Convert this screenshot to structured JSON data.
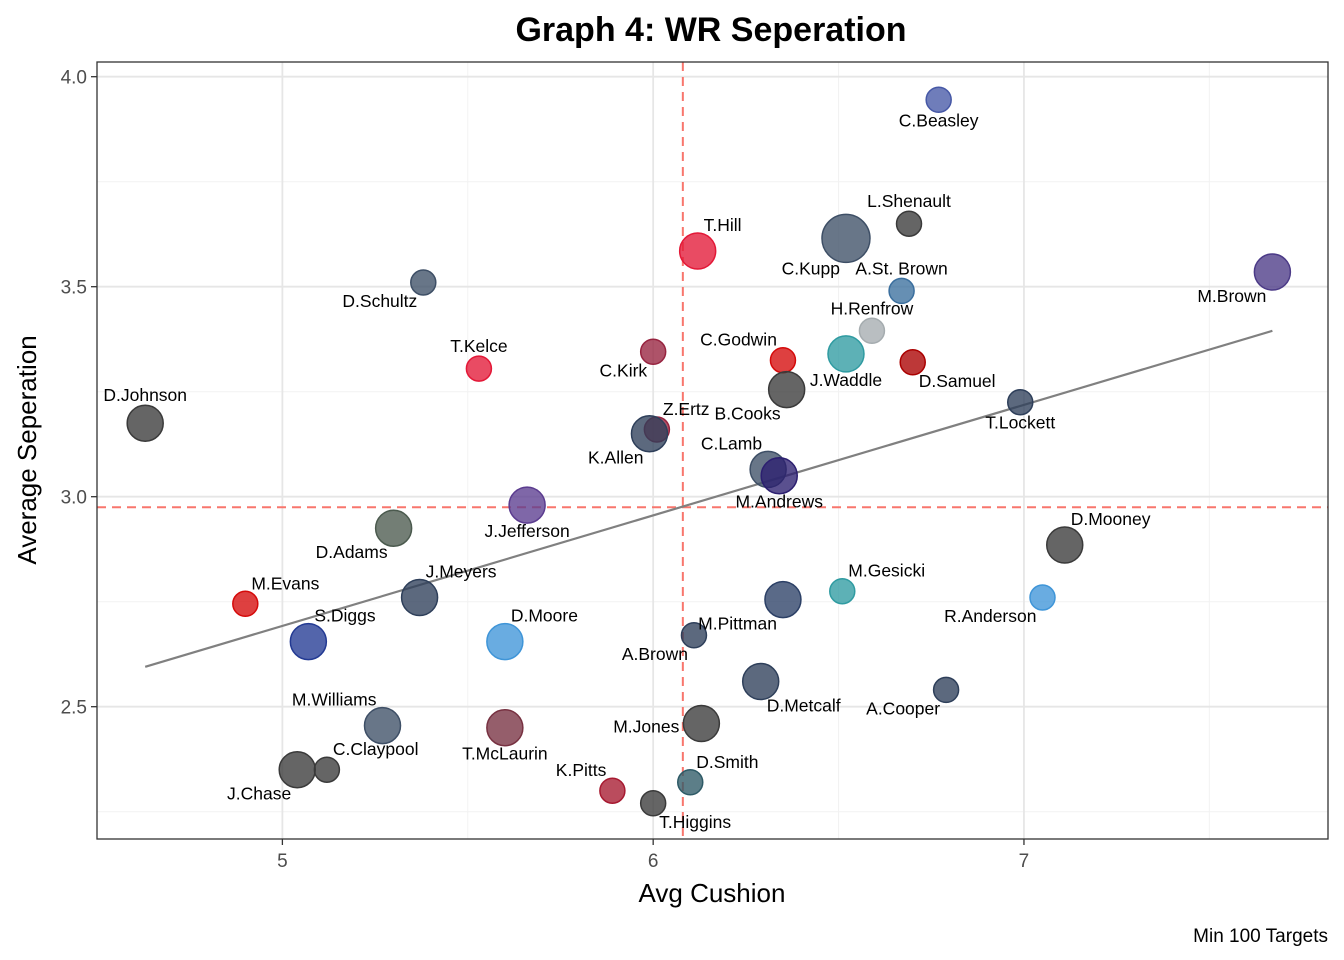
{
  "chart_data": {
    "type": "scatter",
    "title": "Graph 4: WR Seperation",
    "xlabel": "Avg Cushion",
    "ylabel": "Average Seperation",
    "caption": "Min 100 Targets",
    "xlim": [
      4.5,
      7.82
    ],
    "ylim": [
      2.185,
      4.035
    ],
    "x_ticks": [
      5,
      6,
      7
    ],
    "y_ticks": [
      2.5,
      3.0,
      3.5,
      4.0
    ],
    "x_tick_labels": [
      "5",
      "6",
      "7"
    ],
    "y_tick_labels": [
      "2.5",
      "3.0",
      "3.5",
      "4.0"
    ],
    "grid": true,
    "mean_lines": {
      "x": 6.08,
      "y": 2.975,
      "color": "#f8766d"
    },
    "trend_line": {
      "x": [
        4.63,
        7.67
      ],
      "y": [
        2.595,
        3.395
      ],
      "color": "#808080"
    },
    "points": [
      {
        "name": "C.Beasley",
        "x": 6.77,
        "y": 3.945,
        "size": 1,
        "color": "#4658a6",
        "label_pos": "below"
      },
      {
        "name": "L.Shenault",
        "x": 6.69,
        "y": 3.65,
        "size": 1,
        "color": "#3a3a3a",
        "label_pos": "above"
      },
      {
        "name": "C.Kupp",
        "x": 6.52,
        "y": 3.615,
        "size": 3,
        "color": "#3e4f66",
        "label_pos": "below-left"
      },
      {
        "name": "T.Hill",
        "x": 6.12,
        "y": 3.585,
        "size": 2,
        "color": "#e31837",
        "label_pos": "above-right"
      },
      {
        "name": "M.Brown",
        "x": 7.67,
        "y": 3.535,
        "size": 2,
        "color": "#4b3a87",
        "label_pos": "below-left"
      },
      {
        "name": "D.Schultz",
        "x": 5.38,
        "y": 3.51,
        "size": 1,
        "color": "#3e4f66",
        "label_pos": "below-left"
      },
      {
        "name": "A.St. Brown",
        "x": 6.67,
        "y": 3.49,
        "size": 1,
        "color": "#3b6f9e",
        "label_pos": "above"
      },
      {
        "name": "H.Renfrow",
        "x": 6.59,
        "y": 3.395,
        "size": 1,
        "color": "#a5acaf",
        "label_pos": "above"
      },
      {
        "name": "C.Kirk",
        "x": 6.0,
        "y": 3.345,
        "size": 1,
        "color": "#97233f",
        "label_pos": "below-left"
      },
      {
        "name": "J.Waddle",
        "x": 6.52,
        "y": 3.34,
        "size": 2,
        "color": "#2f9ba1",
        "label_pos": "below"
      },
      {
        "name": "C.Godwin",
        "x": 6.35,
        "y": 3.325,
        "size": 1,
        "color": "#d50a0a",
        "label_pos": "above-left"
      },
      {
        "name": "D.Samuel",
        "x": 6.7,
        "y": 3.32,
        "size": 1,
        "color": "#aa0000",
        "label_pos": "below-right"
      },
      {
        "name": "T.Kelce",
        "x": 5.53,
        "y": 3.305,
        "size": 1,
        "color": "#e31837",
        "label_pos": "above"
      },
      {
        "name": "B.Cooks",
        "x": 6.36,
        "y": 3.255,
        "size": 2,
        "color": "#3a3a3a",
        "label_pos": "below-left"
      },
      {
        "name": "T.Lockett",
        "x": 6.99,
        "y": 3.225,
        "size": 1,
        "color": "#2e3f5a",
        "label_pos": "below"
      },
      {
        "name": "D.Johnson",
        "x": 4.63,
        "y": 3.175,
        "size": 2,
        "color": "#3a3a3a",
        "label_pos": "above"
      },
      {
        "name": "Z.Ertz",
        "x": 6.01,
        "y": 3.16,
        "size": 1,
        "color": "#97233f",
        "label_pos": "above-right"
      },
      {
        "name": "K.Allen",
        "x": 5.99,
        "y": 3.15,
        "size": 2,
        "color": "#2e3f5a",
        "label_pos": "below-left"
      },
      {
        "name": "C.Lamb",
        "x": 6.31,
        "y": 3.065,
        "size": 2,
        "color": "#3e4f66",
        "label_pos": "above-left"
      },
      {
        "name": "M.Andrews",
        "x": 6.34,
        "y": 3.05,
        "size": 2,
        "color": "#2c1f70",
        "label_pos": "below"
      },
      {
        "name": "J.Jefferson",
        "x": 5.66,
        "y": 2.98,
        "size": 2,
        "color": "#5b3c8f",
        "label_pos": "below"
      },
      {
        "name": "D.Adams",
        "x": 5.3,
        "y": 2.925,
        "size": 2,
        "color": "#4b5a4e",
        "label_pos": "below-left"
      },
      {
        "name": "D.Mooney",
        "x": 7.11,
        "y": 2.885,
        "size": 2,
        "color": "#3a3a3a",
        "label_pos": "above-right"
      },
      {
        "name": "M.Gesicki",
        "x": 6.51,
        "y": 2.775,
        "size": 1,
        "color": "#2f9ba1",
        "label_pos": "above-right"
      },
      {
        "name": "R.Anderson",
        "x": 7.05,
        "y": 2.76,
        "size": 1,
        "color": "#3f95d8",
        "label_pos": "below-left"
      },
      {
        "name": "J.Meyers",
        "x": 5.37,
        "y": 2.76,
        "size": 2,
        "color": "#2e3f5a",
        "label_pos": "above-right"
      },
      {
        "name": "M.Pittman",
        "x": 6.35,
        "y": 2.755,
        "size": 2,
        "color": "#2c4066",
        "label_pos": "below-left"
      },
      {
        "name": "M.Evans",
        "x": 4.9,
        "y": 2.745,
        "size": 1,
        "color": "#d50a0a",
        "label_pos": "above-right"
      },
      {
        "name": "A.Brown",
        "x": 6.11,
        "y": 2.67,
        "size": 1,
        "color": "#2e3f5a",
        "label_pos": "below-left"
      },
      {
        "name": "S.Diggs",
        "x": 5.07,
        "y": 2.655,
        "size": 2,
        "color": "#233a93",
        "label_pos": "above-right"
      },
      {
        "name": "D.Moore",
        "x": 5.6,
        "y": 2.655,
        "size": 2,
        "color": "#3f95d8",
        "label_pos": "above-right"
      },
      {
        "name": "D.Metcalf",
        "x": 6.29,
        "y": 2.56,
        "size": 2,
        "color": "#2e3f5a",
        "label_pos": "below-right"
      },
      {
        "name": "A.Cooper",
        "x": 6.79,
        "y": 2.54,
        "size": 1,
        "color": "#2e3f5a",
        "label_pos": "below-left"
      },
      {
        "name": "M.Jones",
        "x": 6.13,
        "y": 2.46,
        "size": 2,
        "color": "#3a3a3a",
        "label_pos": "left"
      },
      {
        "name": "M.Williams",
        "x": 5.27,
        "y": 2.455,
        "size": 2,
        "color": "#3e4f66",
        "label_pos": "above-left"
      },
      {
        "name": "T.McLaurin",
        "x": 5.6,
        "y": 2.45,
        "size": 2,
        "color": "#773141",
        "label_pos": "below"
      },
      {
        "name": "J.Chase",
        "x": 5.04,
        "y": 2.35,
        "size": 2,
        "color": "#3a3a3a",
        "label_pos": "below-left"
      },
      {
        "name": "C.Claypool",
        "x": 5.12,
        "y": 2.35,
        "size": 1,
        "color": "#3a3a3a",
        "label_pos": "above-right"
      },
      {
        "name": "D.Smith",
        "x": 6.1,
        "y": 2.32,
        "size": 1,
        "color": "#2e5a66",
        "label_pos": "above-right"
      },
      {
        "name": "K.Pitts",
        "x": 5.89,
        "y": 2.3,
        "size": 1,
        "color": "#a71930",
        "label_pos": "above-left"
      },
      {
        "name": "T.Higgins",
        "x": 6.0,
        "y": 2.27,
        "size": 1,
        "color": "#3a3a3a",
        "label_pos": "below-right"
      }
    ]
  }
}
